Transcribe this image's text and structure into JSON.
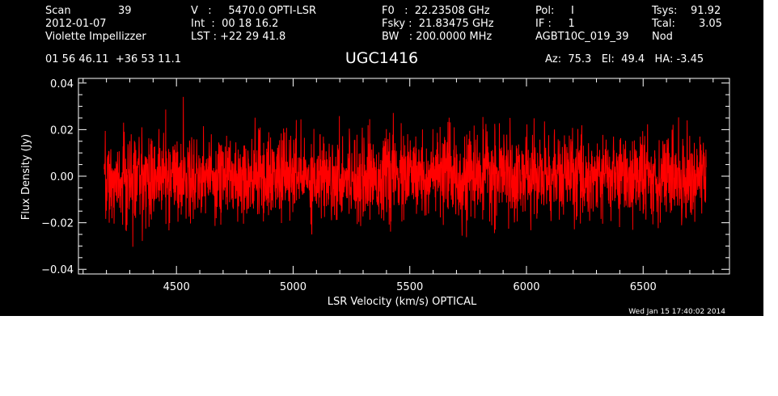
{
  "header": {
    "scan_label": "Scan",
    "scan_number": "39",
    "date": "2012-01-07",
    "observer": "Violette Impellizzer",
    "velocity": "V   :     5470.0 OPTI-LSR",
    "integration": "Int  :  00 18 16.2",
    "lst": "LST : +22 29 41.8",
    "f0": "F0   :  22.23508 GHz",
    "fsky": "Fsky :  21.83475 GHz",
    "bw": "BW   : 200.0000 MHz",
    "pol": "Pol:     I",
    "if": "IF :     1",
    "project": "AGBT10C_019_39",
    "tsys_label": "Tsys:",
    "tsys_value": "91.92",
    "tcal_label": "Tcal:",
    "tcal_value": "3.05",
    "mode": "Nod",
    "coordinates": "01 56 46.11  +36 53 11.1",
    "source": "UGC1416",
    "pointing": "Az:  75.3   El:  49.4   HA: -3.45",
    "timestamp": "Wed Jan 15 17:40:02 2014"
  },
  "chart_data": {
    "type": "line",
    "title": "UGC1416",
    "xlabel": "LSR Velocity (km/s) OPTICAL",
    "ylabel": "Flux Density (Jy)",
    "xlim": [
      4080,
      6870
    ],
    "ylim": [
      -0.042,
      0.042
    ],
    "xticks": [
      4500,
      5000,
      5500,
      6000,
      6500
    ],
    "yticks": [
      -0.04,
      -0.02,
      0.0,
      0.02,
      0.04
    ],
    "xtick_labels": [
      "4500",
      "5000",
      "5500",
      "6000",
      "6500"
    ],
    "ytick_labels": [
      "−0.04",
      "−0.02",
      "0.00",
      "0.02",
      "0.04"
    ],
    "grid": false,
    "series": [
      {
        "color": "#ff0000",
        "x_start": 4190,
        "x_end": 6770,
        "baseline": 0.0,
        "noise_rms": 0.009
      }
    ]
  }
}
